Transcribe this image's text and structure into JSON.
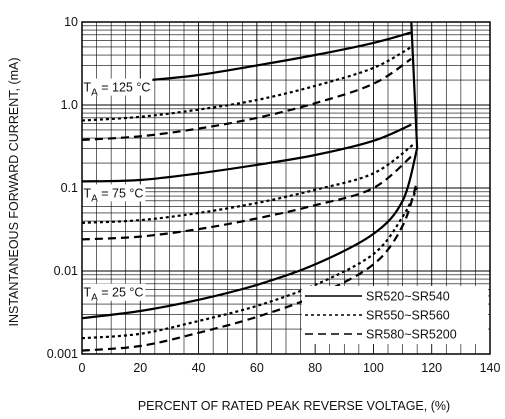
{
  "chart_data": {
    "type": "line",
    "xlabel": "PERCENT OF RATED PEAK REVERSE VOLTAGE, (%)",
    "ylabel": "INSTANTANEOUS FORWARD CURRENT, (mA)",
    "x_scale": "linear",
    "y_scale": "log",
    "xlim": [
      0,
      140
    ],
    "ylim": [
      0.001,
      10
    ],
    "x_ticks": [
      "0",
      "20",
      "40",
      "60",
      "80",
      "100",
      "120",
      "140"
    ],
    "y_ticks": [
      "0.001",
      "0.01",
      "0.1",
      "1.0",
      "10"
    ],
    "grid": true,
    "legend_position": "bottom-right",
    "annotations": [
      {
        "sub": "A",
        "rest": " = 125 °C",
        "x": 0.5,
        "y": 1.45
      },
      {
        "sub": "A",
        "rest": " = 75 °C",
        "x": 0.5,
        "y": 0.077
      },
      {
        "sub": "A",
        "rest": " = 25 °C",
        "x": 0.5,
        "y": 0.0049
      }
    ],
    "annotation_prefix": "T",
    "series": [
      {
        "name": "SR520~SR540",
        "style": "solid",
        "groups": [
          {
            "temp": "125 °C",
            "x": [
              0,
              20,
              40,
              60,
              80,
              100,
              113
            ],
            "y": [
              1.75,
              1.95,
              2.3,
              3.0,
              4.0,
              5.6,
              7.5
            ]
          },
          {
            "temp": "75 °C",
            "x": [
              0,
              20,
              40,
              60,
              80,
              100,
              113
            ],
            "y": [
              0.12,
              0.125,
              0.15,
              0.19,
              0.25,
              0.37,
              0.58
            ]
          },
          {
            "temp": "25 °C",
            "x": [
              0,
              20,
              40,
              60,
              80,
              100,
              110,
              115
            ],
            "y": [
              0.0027,
              0.0033,
              0.0045,
              0.0068,
              0.012,
              0.028,
              0.07,
              0.3
            ]
          }
        ]
      },
      {
        "name": "SR550~SR560",
        "style": "dotted",
        "groups": [
          {
            "temp": "125 °C",
            "x": [
              0,
              20,
              40,
              60,
              80,
              100,
              113
            ],
            "y": [
              0.65,
              0.72,
              0.88,
              1.15,
              1.7,
              2.8,
              5.0
            ]
          },
          {
            "temp": "75 °C",
            "x": [
              0,
              20,
              40,
              60,
              80,
              100,
              114
            ],
            "y": [
              0.038,
              0.041,
              0.05,
              0.066,
              0.095,
              0.15,
              0.34
            ]
          },
          {
            "temp": "25 °C",
            "x": [
              0,
              20,
              40,
              60,
              80,
              100,
              110,
              115
            ],
            "y": [
              0.00155,
              0.00175,
              0.0025,
              0.0038,
              0.0068,
              0.016,
              0.045,
              0.1
            ]
          }
        ]
      },
      {
        "name": "SR580~SR5200",
        "style": "dashed",
        "groups": [
          {
            "temp": "125 °C",
            "x": [
              0,
              20,
              40,
              60,
              80,
              100,
              113
            ],
            "y": [
              0.38,
              0.42,
              0.52,
              0.7,
              1.05,
              1.8,
              3.6
            ]
          },
          {
            "temp": "75 °C",
            "x": [
              0,
              20,
              40,
              60,
              80,
              100,
              114
            ],
            "y": [
              0.024,
              0.026,
              0.032,
              0.043,
              0.062,
              0.1,
              0.26
            ]
          },
          {
            "temp": "25 °C",
            "x": [
              0,
              20,
              40,
              60,
              80,
              100,
              110,
              115
            ],
            "y": [
              0.0011,
              0.00125,
              0.0018,
              0.0028,
              0.005,
              0.012,
              0.035,
              0.12
            ]
          }
        ]
      }
    ],
    "cutoff_line": {
      "x": [
        113,
        115
      ],
      "y": [
        10,
        0.3
      ]
    }
  }
}
